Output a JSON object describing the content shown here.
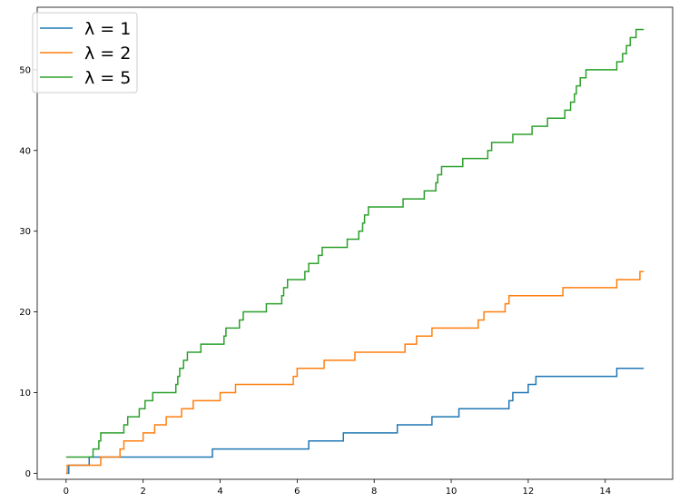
{
  "chart_data": {
    "type": "line",
    "step": true,
    "title": "",
    "xlabel": "",
    "ylabel": "",
    "xlim": [
      -0.75,
      15.75
    ],
    "ylim": [
      -0.75,
      57.75
    ],
    "xticks": [
      0,
      2,
      4,
      6,
      8,
      10,
      12,
      14
    ],
    "yticks": [
      0,
      10,
      20,
      30,
      40,
      50
    ],
    "grid": false,
    "legend": "top-left",
    "series": [
      {
        "name": "λ = 1",
        "color": "#1f77b4",
        "x": [
          0,
          0.07,
          0.6,
          3.8,
          6.3,
          7.2,
          8.6,
          9.5,
          10.2,
          11.5,
          11.6,
          12.0,
          12.2,
          14.3,
          15.0
        ],
        "y": [
          0,
          1,
          2,
          3,
          4,
          5,
          6,
          7,
          8,
          9,
          10,
          11,
          12,
          13,
          13
        ]
      },
      {
        "name": "λ = 2",
        "color": "#ff7f0e",
        "x": [
          0,
          0.03,
          0.9,
          1.4,
          1.5,
          2.0,
          2.3,
          2.6,
          3.0,
          3.3,
          4.0,
          4.4,
          5.9,
          6.0,
          6.7,
          7.5,
          8.8,
          9.1,
          9.5,
          10.7,
          10.85,
          11.4,
          11.5,
          12.9,
          14.3,
          14.9,
          15.0
        ],
        "y": [
          0,
          1,
          2,
          3,
          4,
          5,
          6,
          7,
          8,
          9,
          10,
          11,
          12,
          13,
          14,
          15,
          16,
          17,
          18,
          19,
          20,
          21,
          22,
          23,
          24,
          25,
          25
        ],
        "_note": ""
      },
      {
        "name": "λ = 5",
        "color": "#2ca02c",
        "x": [
          0,
          0.7,
          0.75,
          0.85,
          0.9,
          1.5,
          1.6,
          1.9,
          2.05,
          2.15,
          2.25,
          2.85,
          2.9,
          2.95,
          3.05,
          3.15,
          3.25,
          3.5,
          4.1,
          4.15,
          4.5,
          4.6,
          5.2,
          5.6,
          5.65,
          5.75,
          5.8,
          5.85,
          6.2,
          6.3,
          6.55,
          6.65,
          7.3,
          7.6,
          7.7,
          7.75,
          7.85,
          8.75,
          9.3,
          9.6,
          9.65,
          9.75,
          10.3,
          10.95,
          11.05,
          11.6,
          12.1,
          12.5,
          12.95,
          13.1,
          13.2,
          13.25,
          13.35,
          13.5,
          13.9,
          14.3,
          14.45,
          14.55,
          14.65,
          14.8,
          15.0
        ],
        "y": [
          2,
          3,
          3,
          4,
          5,
          6,
          7,
          8,
          9,
          9,
          10,
          11,
          12,
          13,
          14,
          15,
          15,
          16,
          17,
          18,
          19,
          20,
          21,
          22,
          23,
          24,
          24,
          24,
          25,
          26,
          27,
          28,
          29,
          30,
          31,
          32,
          33,
          34,
          35,
          36,
          37,
          38,
          39,
          40,
          41,
          42,
          43,
          44,
          45,
          46,
          47,
          48,
          49,
          50,
          50,
          51,
          52,
          53,
          54,
          55,
          55
        ]
      }
    ]
  }
}
